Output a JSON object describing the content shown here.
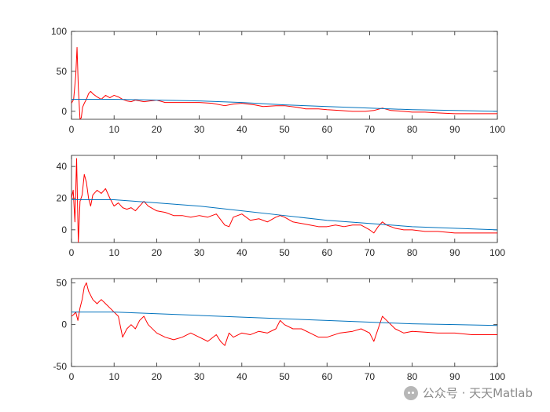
{
  "watermark": {
    "text": "公众号 · 天天Matlab",
    "icon": "wechat-icon"
  },
  "colors": {
    "trend": "#0072BD",
    "signal": "#FF0000",
    "axis": "#262626"
  },
  "chart_data": [
    {
      "type": "line",
      "title": "",
      "xlabel": "",
      "ylabel": "",
      "xlim": [
        0,
        100
      ],
      "ylim": [
        -10,
        100
      ],
      "xticks": [
        "0",
        "10",
        "20",
        "30",
        "40",
        "50",
        "60",
        "70",
        "80",
        "90",
        "100"
      ],
      "yticks": [
        "0",
        "50",
        "100"
      ],
      "grid": false,
      "series": [
        {
          "color": "#0072BD",
          "x": [
            0,
            10,
            20,
            30,
            40,
            50,
            60,
            70,
            80,
            90,
            100
          ],
          "y": [
            15,
            15,
            14,
            13,
            11,
            8,
            6,
            4,
            2,
            1,
            0
          ]
        },
        {
          "color": "#FF0000",
          "x": [
            0,
            0.5,
            1,
            1.3,
            1.6,
            2,
            2.3,
            2.6,
            3,
            3.5,
            4,
            4.5,
            5,
            6,
            7,
            8,
            9,
            10,
            11,
            12,
            13,
            14,
            15,
            17,
            20,
            22,
            25,
            28,
            30,
            33,
            36,
            38,
            40,
            43,
            45,
            48,
            50,
            53,
            55,
            58,
            60,
            63,
            66,
            69,
            71,
            73,
            75,
            78,
            80,
            83,
            86,
            90,
            93,
            96,
            100
          ],
          "y": [
            10,
            15,
            45,
            80,
            30,
            -10,
            -8,
            5,
            10,
            15,
            22,
            25,
            22,
            18,
            15,
            20,
            17,
            20,
            18,
            15,
            13,
            12,
            14,
            12,
            14,
            11,
            11,
            11,
            11,
            10,
            7,
            9,
            10,
            8,
            6,
            7,
            7,
            5,
            3,
            3,
            2,
            1,
            0,
            0,
            1,
            4,
            1,
            0,
            -1,
            -1,
            -2,
            -3,
            -3,
            -3,
            -3
          ]
        }
      ]
    },
    {
      "type": "line",
      "title": "",
      "xlabel": "",
      "ylabel": "",
      "xlim": [
        0,
        100
      ],
      "ylim": [
        -8,
        47
      ],
      "xticks": [
        "0",
        "10",
        "20",
        "30",
        "40",
        "50",
        "60",
        "70",
        "80",
        "90",
        "100"
      ],
      "yticks": [
        "0",
        "20",
        "40"
      ],
      "grid": false,
      "series": [
        {
          "color": "#0072BD",
          "x": [
            0,
            10,
            20,
            30,
            40,
            50,
            60,
            70,
            80,
            90,
            100
          ],
          "y": [
            19,
            19,
            17,
            15,
            12,
            9,
            6,
            4,
            2,
            1,
            0
          ]
        },
        {
          "color": "#FF0000",
          "x": [
            0,
            0.4,
            0.8,
            1.2,
            1.6,
            2,
            2.5,
            3,
            3.5,
            4,
            4.5,
            5,
            6,
            7,
            8,
            9,
            10,
            11,
            12,
            13,
            14,
            15,
            16,
            17,
            18,
            20,
            22,
            24,
            26,
            28,
            30,
            32,
            34,
            36,
            37,
            38,
            40,
            42,
            44,
            46,
            48,
            49,
            50,
            52,
            54,
            56,
            58,
            60,
            62,
            64,
            66,
            68,
            70,
            71,
            72,
            73,
            74,
            76,
            78,
            80,
            83,
            86,
            90,
            94,
            97,
            100
          ],
          "y": [
            20,
            25,
            5,
            45,
            -8,
            18,
            22,
            35,
            30,
            20,
            15,
            22,
            25,
            23,
            26,
            20,
            15,
            17,
            14,
            13,
            14,
            12,
            15,
            18,
            15,
            12,
            11,
            9,
            9,
            8,
            9,
            8,
            10,
            3,
            2,
            8,
            10,
            6,
            7,
            5,
            8,
            9,
            8,
            5,
            4,
            3,
            2,
            2,
            3,
            2,
            3,
            3,
            0,
            -2,
            2,
            5,
            3,
            1,
            0,
            0,
            -1,
            -1,
            -2,
            -2,
            -2,
            -2
          ]
        }
      ]
    },
    {
      "type": "line",
      "title": "",
      "xlabel": "",
      "ylabel": "",
      "xlim": [
        0,
        100
      ],
      "ylim": [
        -50,
        55
      ],
      "xticks": [
        "0",
        "10",
        "20",
        "30",
        "40",
        "50",
        "60",
        "70",
        "80",
        "90",
        "100"
      ],
      "yticks": [
        "-50",
        "0",
        "50"
      ],
      "grid": false,
      "series": [
        {
          "color": "#0072BD",
          "x": [
            0,
            10,
            20,
            30,
            40,
            50,
            60,
            70,
            80,
            90,
            100
          ],
          "y": [
            15,
            15,
            13,
            11,
            9,
            7,
            5,
            3,
            1,
            0,
            -1
          ]
        },
        {
          "color": "#FF0000",
          "x": [
            0,
            0.5,
            1,
            1.5,
            2,
            2.5,
            3,
            3.5,
            4,
            5,
            6,
            7,
            8,
            9,
            10,
            11,
            12,
            13,
            14,
            15,
            16,
            17,
            18,
            20,
            22,
            24,
            26,
            28,
            30,
            32,
            34,
            35,
            36,
            37,
            38,
            40,
            42,
            44,
            46,
            48,
            49,
            50,
            52,
            54,
            56,
            58,
            60,
            63,
            66,
            68,
            70,
            71,
            72,
            73,
            74,
            76,
            78,
            80,
            83,
            86,
            90,
            94,
            97,
            100
          ],
          "y": [
            10,
            12,
            15,
            5,
            20,
            30,
            45,
            50,
            40,
            30,
            25,
            30,
            25,
            20,
            15,
            10,
            -15,
            -5,
            0,
            -5,
            5,
            10,
            0,
            -10,
            -15,
            -18,
            -15,
            -10,
            -15,
            -20,
            -12,
            -20,
            -25,
            -10,
            -15,
            -10,
            -12,
            -8,
            -10,
            -5,
            5,
            0,
            -5,
            -5,
            -10,
            -15,
            -15,
            -10,
            -8,
            -5,
            -10,
            -20,
            -5,
            10,
            5,
            -5,
            -10,
            -8,
            -9,
            -10,
            -10,
            -12,
            -12,
            -12
          ]
        }
      ]
    }
  ]
}
